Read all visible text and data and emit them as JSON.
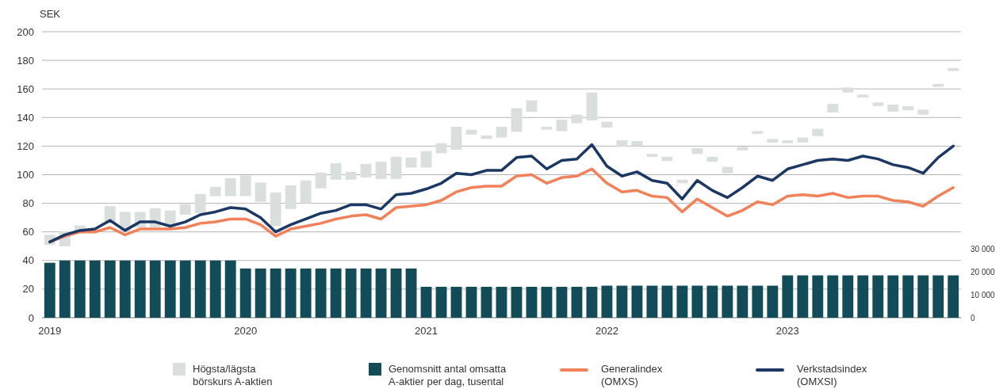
{
  "chart_data": {
    "type": "bar",
    "ylabel": "SEK",
    "categories": [
      "2019",
      null,
      null,
      null,
      null,
      null,
      null,
      null,
      null,
      null,
      null,
      null,
      null,
      "2020",
      null,
      null,
      null,
      null,
      null,
      null,
      null,
      null,
      null,
      null,
      null,
      "2021",
      null,
      null,
      null,
      null,
      null,
      null,
      null,
      null,
      null,
      null,
      null,
      "2022",
      null,
      null,
      null,
      null,
      null,
      null,
      null,
      null,
      null,
      null,
      null,
      "2023",
      null,
      null,
      null,
      null,
      null,
      null,
      null,
      null,
      null,
      null,
      null
    ],
    "ylim": [
      0,
      200
    ],
    "yticks": [
      0,
      20,
      40,
      60,
      80,
      100,
      120,
      140,
      160,
      180,
      200
    ],
    "y2lim": [
      0,
      125000
    ],
    "y2ticks": [
      0,
      {
        "value": 10000,
        "label": "10 000"
      },
      {
        "value": 20000,
        "label": "20 000"
      },
      {
        "value": 30000,
        "label": "30 000"
      }
    ],
    "grid": "y",
    "legend": "bottom",
    "series": [
      {
        "name": "Högsta/lägsta börskurs A-aktien",
        "color": "#d8dfdd",
        "base": [
          51,
          50,
          60,
          null,
          67,
          60,
          63,
          63,
          65,
          72,
          73,
          85,
          85,
          85,
          81,
          64,
          76,
          80,
          90.5,
          96.5,
          96.5,
          98,
          97,
          97,
          105,
          105,
          115,
          117.5,
          128,
          125,
          126,
          130,
          144,
          131.5,
          130.5,
          136,
          138,
          133,
          119.5,
          120,
          112.5,
          109.5,
          94,
          114.5,
          109,
          101,
          117,
          128.5,
          122.5,
          122,
          122.5,
          127,
          143.5,
          157.5,
          154,
          148,
          144,
          145,
          142,
          161.5,
          172.5
        ],
        "values": [
          7,
          10.5,
          4.5,
          null,
          11,
          14,
          11,
          13.5,
          10,
          7.5,
          13.5,
          6.5,
          12.5,
          14.5,
          13.5,
          23.5,
          16.5,
          16,
          11,
          11.5,
          5.5,
          9.5,
          12,
          15.5,
          7,
          11.5,
          7,
          16,
          3.5,
          2.5,
          7.5,
          16.5,
          8,
          2,
          8,
          6,
          19.5,
          4,
          4.5,
          3.5,
          2,
          3,
          2.5,
          4,
          3.5,
          4.5,
          2.5,
          2,
          2.5,
          2,
          3.5,
          5,
          6,
          3.5,
          2,
          2.5,
          5,
          3,
          3.5,
          2,
          2
        ]
      },
      {
        "name": "Genomsnitt antal omsatta A-aktier per dag, tusental",
        "axis": "y2",
        "color": "#124c58",
        "values": [
          24000,
          25000,
          25000,
          25000,
          25000,
          25000,
          25000,
          25000,
          25000,
          25000,
          25000,
          25000,
          25000,
          21500,
          21500,
          21500,
          21500,
          21500,
          21500,
          21500,
          21500,
          21500,
          21500,
          21500,
          21500,
          13500,
          13500,
          13500,
          13500,
          13500,
          13500,
          13500,
          13500,
          13500,
          13500,
          13500,
          13500,
          14000,
          14000,
          14000,
          14000,
          14000,
          14000,
          14000,
          14000,
          14000,
          14000,
          14000,
          14000,
          18500,
          18500,
          18500,
          18500,
          18500,
          18500,
          18500,
          18500,
          18500,
          18500,
          18500,
          18500
        ]
      },
      {
        "name": "Generalindex (OMXS)",
        "type": "line",
        "color": "#f28058",
        "values": [
          53,
          57,
          60,
          60,
          63,
          58,
          62,
          62,
          62,
          63,
          66,
          67,
          69,
          69,
          65,
          57,
          62,
          64,
          66,
          69,
          71,
          72,
          69,
          77,
          78,
          79,
          82,
          88,
          91,
          92,
          92,
          99,
          100,
          94,
          98,
          99,
          104,
          94,
          88,
          89,
          85,
          84,
          74,
          83,
          77,
          71,
          75,
          81,
          79,
          85,
          86,
          85,
          87,
          84,
          85,
          85,
          82,
          81,
          78,
          85,
          91
        ]
      },
      {
        "name": "Verkstadsindex (OMXSI)",
        "type": "line",
        "color": "#1b3763",
        "values": [
          53,
          58,
          61,
          62,
          68,
          61,
          67,
          67,
          64,
          67,
          72,
          74,
          77,
          76,
          70,
          60,
          65,
          69,
          73,
          75,
          79,
          79,
          76,
          86,
          87,
          90,
          94,
          101,
          100,
          103,
          103,
          112,
          113,
          104,
          110,
          111,
          121,
          106,
          99,
          102,
          96,
          94,
          83,
          96,
          89,
          84,
          91,
          99,
          96,
          104,
          107,
          110,
          111,
          110,
          113,
          111,
          107,
          105,
          101,
          112,
          120
        ]
      }
    ]
  }
}
